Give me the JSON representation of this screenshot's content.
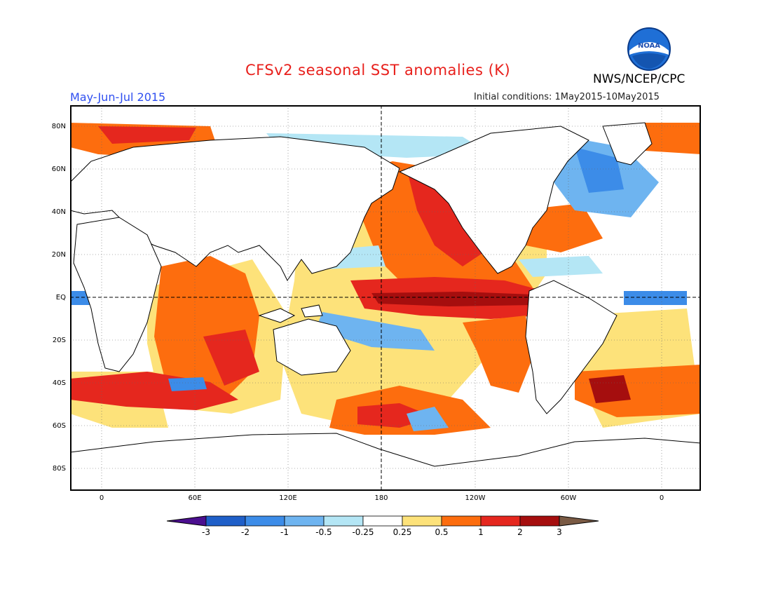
{
  "title": "CFSv2 seasonal SST anomalies (K)",
  "agency": "NWS/NCEP/CPC",
  "season": "May-Jun-Jul 2015",
  "initial_conditions": "Initial conditions: 1May2015-10May2015",
  "logo_text": "NOAA",
  "logo_icon": "noaa-logo-icon",
  "y_ticks": [
    "80N",
    "60N",
    "40N",
    "20N",
    "EQ",
    "20S",
    "40S",
    "60S",
    "80S"
  ],
  "x_ticks": [
    "0",
    "60E",
    "120E",
    "180",
    "120W",
    "60W",
    "0"
  ],
  "colorbar": {
    "labels": [
      "-3",
      "-2",
      "-1",
      "-0.5",
      "-0.25",
      "0.25",
      "0.5",
      "1",
      "2",
      "3"
    ],
    "colors": [
      "#4b0f8f",
      "#1f5fc8",
      "#3c8ce8",
      "#6eb4f0",
      "#b4e6f5",
      "#ffffff",
      "#fde27a",
      "#fd6d0e",
      "#e5271e",
      "#a50e0e",
      "#7a5a44"
    ]
  },
  "legend_colors": {
    "strong_neg": "#3c8ce8",
    "mid_neg": "#6eb4f0",
    "weak_neg": "#b4e6f5",
    "weak_pos": "#fde27a",
    "mid_pos": "#fd6d0e",
    "strong_pos": "#e5271e",
    "very_pos": "#a50e0e",
    "land": "#ffffff",
    "coast": "#000000"
  }
}
